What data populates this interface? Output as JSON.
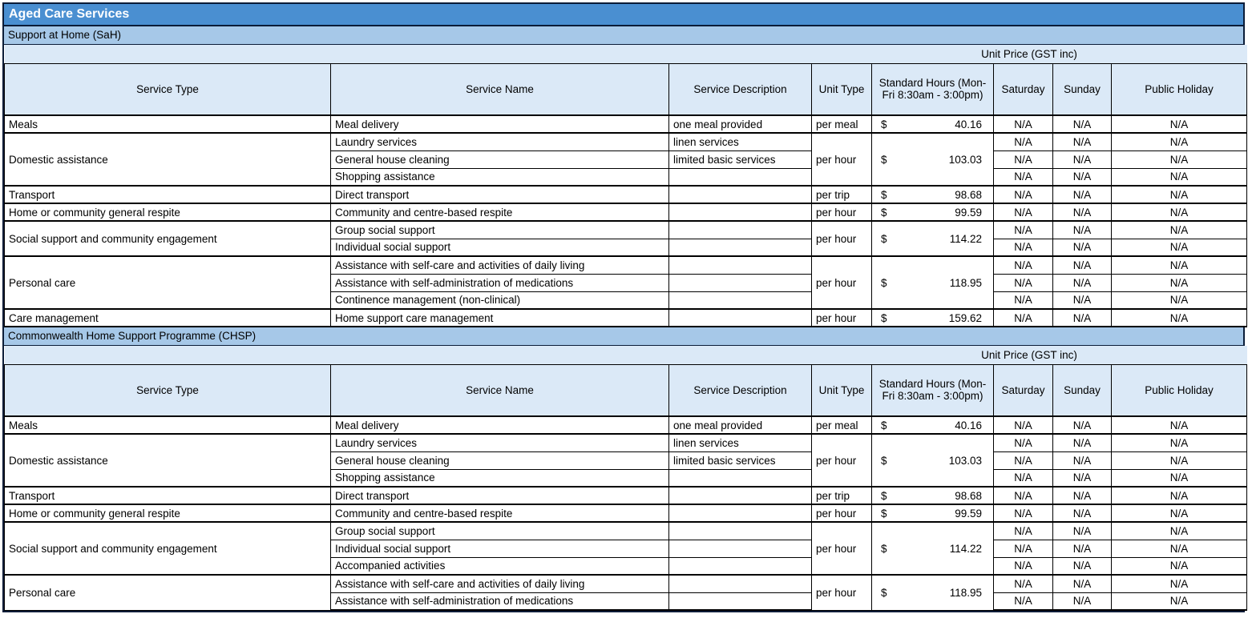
{
  "title": "Aged Care Services",
  "colors": {
    "title_bar": "#4a8fd1",
    "section_bar": "#a6c8e8",
    "header_cell": "#dbe9f7",
    "grid": "#000000",
    "title_text": "#ffffff"
  },
  "table": {
    "unit_price_header": "Unit Price (GST inc)",
    "currency_symbol": "$",
    "columns": [
      "Service Type",
      "Service Name",
      "Service Description",
      "Unit Type",
      "Standard Hours (Mon-Fri 8:30am - 3:00pm)",
      "Saturday",
      "Sunday",
      "Public Holiday"
    ]
  },
  "sections": [
    {
      "label": "Support at Home (SaH)",
      "groups": [
        {
          "service_type": "Meals",
          "unit_type": "per meal",
          "standard_hours": "40.16",
          "rows": [
            {
              "service_name": "Meal delivery",
              "service_description": "one meal provided",
              "saturday": "N/A",
              "sunday": "N/A",
              "public_holiday": "N/A"
            }
          ]
        },
        {
          "service_type": "Domestic assistance",
          "unit_type": "per hour",
          "standard_hours": "103.03",
          "rows": [
            {
              "service_name": "Laundry services",
              "service_description": "linen services",
              "saturday": "N/A",
              "sunday": "N/A",
              "public_holiday": "N/A"
            },
            {
              "service_name": "General house cleaning",
              "service_description": "limited basic services",
              "saturday": "N/A",
              "sunday": "N/A",
              "public_holiday": "N/A"
            },
            {
              "service_name": "Shopping assistance",
              "service_description": "",
              "saturday": "N/A",
              "sunday": "N/A",
              "public_holiday": "N/A"
            }
          ]
        },
        {
          "service_type": "Transport",
          "unit_type": "per trip",
          "standard_hours": "98.68",
          "rows": [
            {
              "service_name": "Direct transport",
              "service_description": "",
              "saturday": "N/A",
              "sunday": "N/A",
              "public_holiday": "N/A"
            }
          ]
        },
        {
          "service_type": "Home or community general respite",
          "unit_type": "per hour",
          "standard_hours": "99.59",
          "rows": [
            {
              "service_name": "Community and centre-based respite",
              "service_description": "",
              "saturday": "N/A",
              "sunday": "N/A",
              "public_holiday": "N/A"
            }
          ]
        },
        {
          "service_type": "Social support and community engagement",
          "unit_type": "per hour",
          "standard_hours": "114.22",
          "rows": [
            {
              "service_name": "Group social support",
              "service_description": "",
              "saturday": "N/A",
              "sunday": "N/A",
              "public_holiday": "N/A"
            },
            {
              "service_name": "Individual social support",
              "service_description": "",
              "saturday": "N/A",
              "sunday": "N/A",
              "public_holiday": "N/A"
            }
          ]
        },
        {
          "service_type": "Personal care",
          "unit_type": "per hour",
          "standard_hours": "118.95",
          "rows": [
            {
              "service_name": "Assistance with self-care and activities of daily living",
              "service_description": "",
              "saturday": "N/A",
              "sunday": "N/A",
              "public_holiday": "N/A"
            },
            {
              "service_name": "Assistance with self-administration of medications",
              "service_description": "",
              "saturday": "N/A",
              "sunday": "N/A",
              "public_holiday": "N/A"
            },
            {
              "service_name": "Continence management (non-clinical)",
              "service_description": "",
              "saturday": "N/A",
              "sunday": "N/A",
              "public_holiday": "N/A"
            }
          ]
        },
        {
          "service_type": "Care management",
          "unit_type": "per hour",
          "standard_hours": "159.62",
          "rows": [
            {
              "service_name": "Home support care management",
              "service_description": "",
              "saturday": "N/A",
              "sunday": "N/A",
              "public_holiday": "N/A"
            }
          ]
        }
      ]
    },
    {
      "label": "Commonwealth Home Support Programme (CHSP)",
      "groups": [
        {
          "service_type": "Meals",
          "unit_type": "per meal",
          "standard_hours": "40.16",
          "rows": [
            {
              "service_name": "Meal delivery",
              "service_description": "one meal provided",
              "saturday": "N/A",
              "sunday": "N/A",
              "public_holiday": "N/A"
            }
          ]
        },
        {
          "service_type": "Domestic assistance",
          "unit_type": "per hour",
          "standard_hours": "103.03",
          "rows": [
            {
              "service_name": "Laundry services",
              "service_description": "linen services",
              "saturday": "N/A",
              "sunday": "N/A",
              "public_holiday": "N/A"
            },
            {
              "service_name": "General house cleaning",
              "service_description": "limited basic services",
              "saturday": "N/A",
              "sunday": "N/A",
              "public_holiday": "N/A"
            },
            {
              "service_name": "Shopping assistance",
              "service_description": "",
              "saturday": "N/A",
              "sunday": "N/A",
              "public_holiday": "N/A"
            }
          ]
        },
        {
          "service_type": "Transport",
          "unit_type": "per trip",
          "standard_hours": "98.68",
          "rows": [
            {
              "service_name": "Direct transport",
              "service_description": "",
              "saturday": "N/A",
              "sunday": "N/A",
              "public_holiday": "N/A"
            }
          ]
        },
        {
          "service_type": "Home or community general respite",
          "unit_type": "per hour",
          "standard_hours": "99.59",
          "rows": [
            {
              "service_name": "Community and centre-based respite",
              "service_description": "",
              "saturday": "N/A",
              "sunday": "N/A",
              "public_holiday": "N/A"
            }
          ]
        },
        {
          "service_type": "Social support and community engagement",
          "unit_type": "per hour",
          "standard_hours": "114.22",
          "rows": [
            {
              "service_name": "Group social support",
              "service_description": "",
              "saturday": "N/A",
              "sunday": "N/A",
              "public_holiday": "N/A"
            },
            {
              "service_name": "Individual social support",
              "service_description": "",
              "saturday": "N/A",
              "sunday": "N/A",
              "public_holiday": "N/A"
            },
            {
              "service_name": "Accompanied activities",
              "service_description": "",
              "saturday": "N/A",
              "sunday": "N/A",
              "public_holiday": "N/A"
            }
          ]
        },
        {
          "service_type": "Personal care",
          "unit_type": "per hour",
          "standard_hours": "118.95",
          "rows": [
            {
              "service_name": "Assistance with self-care and activities of daily living",
              "service_description": "",
              "saturday": "N/A",
              "sunday": "N/A",
              "public_holiday": "N/A"
            },
            {
              "service_name": "Assistance with self-administration of medications",
              "service_description": "",
              "saturday": "N/A",
              "sunday": "N/A",
              "public_holiday": "N/A"
            }
          ]
        }
      ]
    }
  ]
}
